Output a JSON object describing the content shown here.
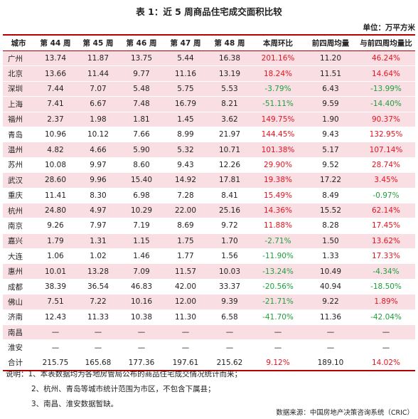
{
  "title": "表 1：近 5 周商品住宅成交面积比较",
  "unit": "单位：万平方米",
  "headers": [
    "城市",
    "第 44 周",
    "第 45 周",
    "第 46 周",
    "第 47 周",
    "第 48 周",
    "本周环比",
    "前四周均量",
    "与前四周均量比"
  ],
  "rows": [
    {
      "city": "广州",
      "w44": "13.74",
      "w45": "11.87",
      "w46": "13.75",
      "w47": "5.44",
      "w48": "16.38",
      "wow": "201.16%",
      "avg4": "11.20",
      "vsavg": "46.24%",
      "wow_color": "red",
      "vs_color": "red",
      "bg": "pink"
    },
    {
      "city": "北京",
      "w44": "13.66",
      "w45": "11.44",
      "w46": "9.77",
      "w47": "11.16",
      "w48": "13.19",
      "wow": "18.24%",
      "avg4": "11.51",
      "vsavg": "14.64%",
      "wow_color": "red",
      "vs_color": "red",
      "bg": "pink"
    },
    {
      "city": "深圳",
      "w44": "7.44",
      "w45": "7.07",
      "w46": "5.48",
      "w47": "5.75",
      "w48": "5.53",
      "wow": "-3.79%",
      "avg4": "6.43",
      "vsavg": "-13.99%",
      "wow_color": "green",
      "vs_color": "green",
      "bg": "pink"
    },
    {
      "city": "上海",
      "w44": "7.41",
      "w45": "6.67",
      "w46": "7.48",
      "w47": "16.79",
      "w48": "8.21",
      "wow": "-51.11%",
      "avg4": "9.59",
      "vsavg": "-14.40%",
      "wow_color": "green",
      "vs_color": "green",
      "bg": "pink"
    },
    {
      "city": "福州",
      "w44": "2.37",
      "w45": "1.98",
      "w46": "1.81",
      "w47": "1.45",
      "w48": "3.62",
      "wow": "149.75%",
      "avg4": "1.90",
      "vsavg": "90.37%",
      "wow_color": "red",
      "vs_color": "red",
      "bg": "pink"
    },
    {
      "city": "青岛",
      "w44": "10.96",
      "w45": "10.12",
      "w46": "7.66",
      "w47": "8.99",
      "w48": "21.97",
      "wow": "144.45%",
      "avg4": "9.43",
      "vsavg": "132.95%",
      "wow_color": "red",
      "vs_color": "red",
      "bg": "white"
    },
    {
      "city": "温州",
      "w44": "4.82",
      "w45": "4.66",
      "w46": "5.90",
      "w47": "5.32",
      "w48": "10.71",
      "wow": "101.38%",
      "avg4": "5.17",
      "vsavg": "107.14%",
      "wow_color": "red",
      "vs_color": "red",
      "bg": "pink"
    },
    {
      "city": "苏州",
      "w44": "10.08",
      "w45": "9.97",
      "w46": "8.60",
      "w47": "9.43",
      "w48": "12.26",
      "wow": "29.90%",
      "avg4": "9.52",
      "vsavg": "28.74%",
      "wow_color": "red",
      "vs_color": "red",
      "bg": "white"
    },
    {
      "city": "武汉",
      "w44": "28.60",
      "w45": "9.96",
      "w46": "15.40",
      "w47": "14.92",
      "w48": "17.81",
      "wow": "19.38%",
      "avg4": "17.22",
      "vsavg": "3.45%",
      "wow_color": "red",
      "vs_color": "red",
      "bg": "pink"
    },
    {
      "city": "重庆",
      "w44": "11.41",
      "w45": "8.30",
      "w46": "6.98",
      "w47": "7.28",
      "w48": "8.41",
      "wow": "15.49%",
      "avg4": "8.49",
      "vsavg": "-0.97%",
      "wow_color": "red",
      "vs_color": "green",
      "bg": "white"
    },
    {
      "city": "杭州",
      "w44": "24.80",
      "w45": "4.97",
      "w46": "10.29",
      "w47": "22.00",
      "w48": "25.16",
      "wow": "14.36%",
      "avg4": "15.52",
      "vsavg": "62.14%",
      "wow_color": "red",
      "vs_color": "red",
      "bg": "pink"
    },
    {
      "city": "南京",
      "w44": "9.26",
      "w45": "7.97",
      "w46": "7.19",
      "w47": "8.69",
      "w48": "9.72",
      "wow": "11.88%",
      "avg4": "8.28",
      "vsavg": "17.45%",
      "wow_color": "red",
      "vs_color": "red",
      "bg": "white"
    },
    {
      "city": "嘉兴",
      "w44": "1.79",
      "w45": "1.31",
      "w46": "1.15",
      "w47": "1.75",
      "w48": "1.70",
      "wow": "-2.71%",
      "avg4": "1.50",
      "vsavg": "13.62%",
      "wow_color": "green",
      "vs_color": "red",
      "bg": "pink"
    },
    {
      "city": "大连",
      "w44": "1.06",
      "w45": "1.02",
      "w46": "1.46",
      "w47": "1.77",
      "w48": "1.56",
      "wow": "-11.90%",
      "avg4": "1.33",
      "vsavg": "17.33%",
      "wow_color": "green",
      "vs_color": "red",
      "bg": "white"
    },
    {
      "city": "惠州",
      "w44": "10.01",
      "w45": "13.28",
      "w46": "7.09",
      "w47": "11.57",
      "w48": "10.03",
      "wow": "-13.24%",
      "avg4": "10.49",
      "vsavg": "-4.34%",
      "wow_color": "green",
      "vs_color": "green",
      "bg": "pink"
    },
    {
      "city": "成都",
      "w44": "38.39",
      "w45": "36.54",
      "w46": "46.83",
      "w47": "42.00",
      "w48": "33.37",
      "wow": "-20.56%",
      "avg4": "40.94",
      "vsavg": "-18.50%",
      "wow_color": "green",
      "vs_color": "green",
      "bg": "white"
    },
    {
      "city": "佛山",
      "w44": "7.51",
      "w45": "7.22",
      "w46": "10.16",
      "w47": "12.00",
      "w48": "9.39",
      "wow": "-21.71%",
      "avg4": "9.22",
      "vsavg": "1.89%",
      "wow_color": "green",
      "vs_color": "red",
      "bg": "pink"
    },
    {
      "city": "济南",
      "w44": "12.43",
      "w45": "11.33",
      "w46": "10.38",
      "w47": "11.30",
      "w48": "6.58",
      "wow": "-41.70%",
      "avg4": "11.36",
      "vsavg": "-42.04%",
      "wow_color": "green",
      "vs_color": "green",
      "bg": "white"
    },
    {
      "city": "南昌",
      "w44": "—",
      "w45": "—",
      "w46": "—",
      "w47": "—",
      "w48": "—",
      "wow": "—",
      "avg4": "—",
      "vsavg": "—",
      "wow_color": "",
      "vs_color": "",
      "bg": "pink"
    },
    {
      "city": "淮安",
      "w44": "—",
      "w45": "—",
      "w46": "—",
      "w47": "—",
      "w48": "—",
      "wow": "—",
      "avg4": "—",
      "vsavg": "—",
      "wow_color": "",
      "vs_color": "",
      "bg": "white"
    }
  ],
  "total": {
    "city": "合计",
    "w44": "215.75",
    "w45": "165.68",
    "w46": "177.36",
    "w47": "197.61",
    "w48": "215.62",
    "wow": "9.12%",
    "avg4": "189.10",
    "vsavg": "14.02%",
    "wow_color": "red",
    "vs_color": "red"
  },
  "notes": [
    "说明：1、本表数据均为各地房管局公布的商品住宅成交情况统计而来；",
    "2、杭州、青岛等城市统计范围为市区，不包含下属县；",
    "3、南昌、淮安数据暂缺。"
  ],
  "source": "数据来源：中国房地产决策咨询系统（CRIC）",
  "colors": {
    "accent": "#b30000",
    "pink_row": "#f9dfe3",
    "up": "#e8121e",
    "down": "#1ea03c"
  }
}
